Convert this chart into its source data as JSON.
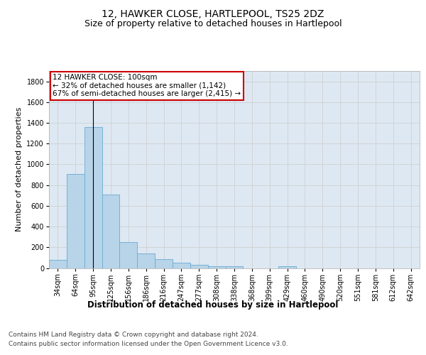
{
  "title": "12, HAWKER CLOSE, HARTLEPOOL, TS25 2DZ",
  "subtitle": "Size of property relative to detached houses in Hartlepool",
  "xlabel": "Distribution of detached houses by size in Hartlepool",
  "ylabel": "Number of detached properties",
  "categories": [
    "34sqm",
    "64sqm",
    "95sqm",
    "125sqm",
    "156sqm",
    "186sqm",
    "216sqm",
    "247sqm",
    "277sqm",
    "308sqm",
    "338sqm",
    "368sqm",
    "399sqm",
    "429sqm",
    "460sqm",
    "490sqm",
    "520sqm",
    "551sqm",
    "581sqm",
    "612sqm",
    "642sqm"
  ],
  "values": [
    80,
    905,
    1360,
    710,
    248,
    140,
    85,
    50,
    32,
    18,
    14,
    0,
    0,
    20,
    0,
    0,
    0,
    0,
    0,
    0,
    0
  ],
  "bar_color": "#b8d4e8",
  "bar_edge_color": "#6aaad4",
  "vline_x": 2,
  "vline_color": "#000000",
  "annotation_line1": "12 HAWKER CLOSE: 100sqm",
  "annotation_line2": "← 32% of detached houses are smaller (1,142)",
  "annotation_line3": "67% of semi-detached houses are larger (2,415) →",
  "annotation_box_color": "#cc0000",
  "ylim": [
    0,
    1900
  ],
  "yticks": [
    0,
    200,
    400,
    600,
    800,
    1000,
    1200,
    1400,
    1600,
    1800
  ],
  "background_color": "#ffffff",
  "grid_color": "#cccccc",
  "footer_line1": "Contains HM Land Registry data © Crown copyright and database right 2024.",
  "footer_line2": "Contains public sector information licensed under the Open Government Licence v3.0.",
  "title_fontsize": 10,
  "subtitle_fontsize": 9,
  "ylabel_fontsize": 8,
  "xlabel_fontsize": 8.5,
  "tick_fontsize": 7,
  "annotation_fontsize": 7.5,
  "footer_fontsize": 6.5
}
